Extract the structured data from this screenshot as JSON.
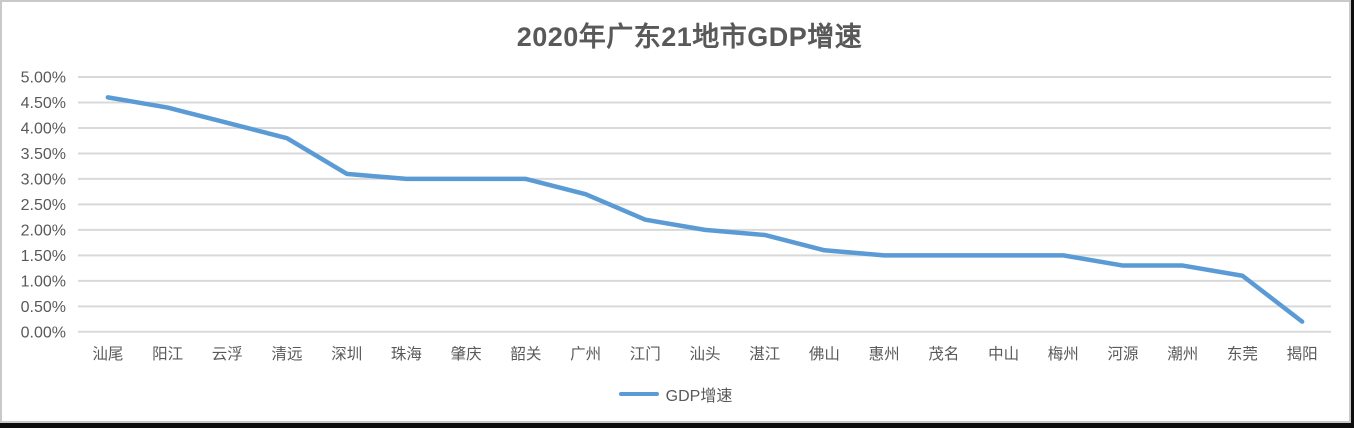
{
  "chart": {
    "title": "2020年广东21地市GDP增速",
    "legend_label": "GDP增速"
  },
  "chart_data": {
    "type": "line",
    "title": "2020年广东21地市GDP增速",
    "categories": [
      "汕尾",
      "阳江",
      "云浮",
      "清远",
      "深圳",
      "珠海",
      "肇庆",
      "韶关",
      "广州",
      "江门",
      "汕头",
      "湛江",
      "佛山",
      "惠州",
      "茂名",
      "中山",
      "梅州",
      "河源",
      "潮州",
      "东莞",
      "揭阳"
    ],
    "series": [
      {
        "name": "GDP增速",
        "values": [
          4.6,
          4.4,
          4.1,
          3.8,
          3.1,
          3.0,
          3.0,
          3.0,
          2.7,
          2.2,
          2.0,
          1.9,
          1.6,
          1.5,
          1.5,
          1.5,
          1.5,
          1.3,
          1.3,
          1.1,
          0.2
        ]
      }
    ],
    "unit": "%",
    "xlabel": "",
    "ylabel": "",
    "ylim": [
      0,
      5
    ],
    "y_ticks": [
      {
        "value": 5.0,
        "label": "5.00%"
      },
      {
        "value": 4.5,
        "label": "4.50%"
      },
      {
        "value": 4.0,
        "label": "4.00%"
      },
      {
        "value": 3.5,
        "label": "3.50%"
      },
      {
        "value": 3.0,
        "label": "3.00%"
      },
      {
        "value": 2.5,
        "label": "2.50%"
      },
      {
        "value": 2.0,
        "label": "2.00%"
      },
      {
        "value": 1.5,
        "label": "1.50%"
      },
      {
        "value": 1.0,
        "label": "1.00%"
      },
      {
        "value": 0.5,
        "label": "0.50%"
      },
      {
        "value": 0.0,
        "label": "0.00%"
      }
    ],
    "grid": true,
    "legend_position": "bottom",
    "line_color": "#5B9BD5",
    "gridline_color": "#D9D9D9",
    "text_color": "#595959"
  }
}
